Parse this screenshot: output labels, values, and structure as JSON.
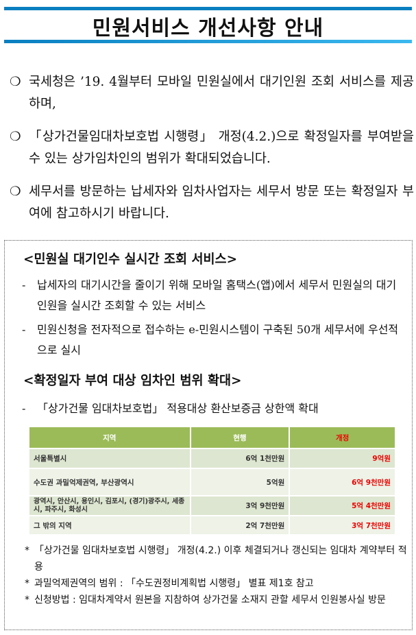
{
  "title": "민원서비스 개선사항 안내",
  "paragraphs": [
    "국세청은 ’19. 4월부터 모바일 민원실에서 대기인원 조회 서비스를 제공하며,",
    "「상가건물임대차보호법 시행령」 개정(4.2.)으로 확정일자를 부여받을 수 있는 상가임차인의 범위가 확대되었습니다.",
    "세무서를 방문하는 납세자와 임차사업자는 세무서 방문 또는 확정일자 부여에 참고하시기 바랍니다."
  ],
  "bullet": "❍",
  "section1": {
    "heading": "<민원실 대기인수 실시간 조회 서비스>",
    "items": [
      "납세자의 대기시간을 줄이기 위해 모바일 홈택스(앱)에서 세무서 민원실의 대기인원을 실시간 조회할 수 있는 서비스",
      "민원신청을 전자적으로 접수하는 e-민원시스템이 구축된 50개 세무서에 우선적으로 실시"
    ]
  },
  "section2": {
    "heading": "<확정일자 부여 대상 임차인 범위 확대>",
    "items": [
      "「상가건물 임대차보호법」 적용대상 환산보증금 상한액 확대"
    ]
  },
  "dash": "-",
  "table": {
    "headers": [
      "지역",
      "현행",
      "개정"
    ],
    "rows": [
      [
        "서울특별시",
        "6억 1천만원",
        "9억원"
      ],
      [
        "수도권 과밀억제권역, 부산광역시",
        "5억원",
        "6억 9천만원"
      ],
      [
        "광역시, 안산시, 용인시, 김포시, (경기)광주시, 세종시, 파주시, 화성시",
        "3억 9천만원",
        "5억 4천만원"
      ],
      [
        "그 밖의 지역",
        "2억 7천만원",
        "3억 7천만원"
      ]
    ]
  },
  "notes": [
    "「상가건물 임대차보호법 시행령」 개정(4.2.) 이후 체결되거나 갱신되는 임대차 계약부터 적용",
    "과밀억제권역의 범위 : 「수도권정비계획법 시행령」 별표 제1호 참고",
    "신청방법 : 임대차계약서 원본을 지참하여 상가건물 소재지 관할 세무서 인원봉사실 방문"
  ],
  "star": "*",
  "colors": {
    "bar": "#0a7fc0",
    "table_header": "#9bbb59",
    "highlight": "#e00000"
  }
}
